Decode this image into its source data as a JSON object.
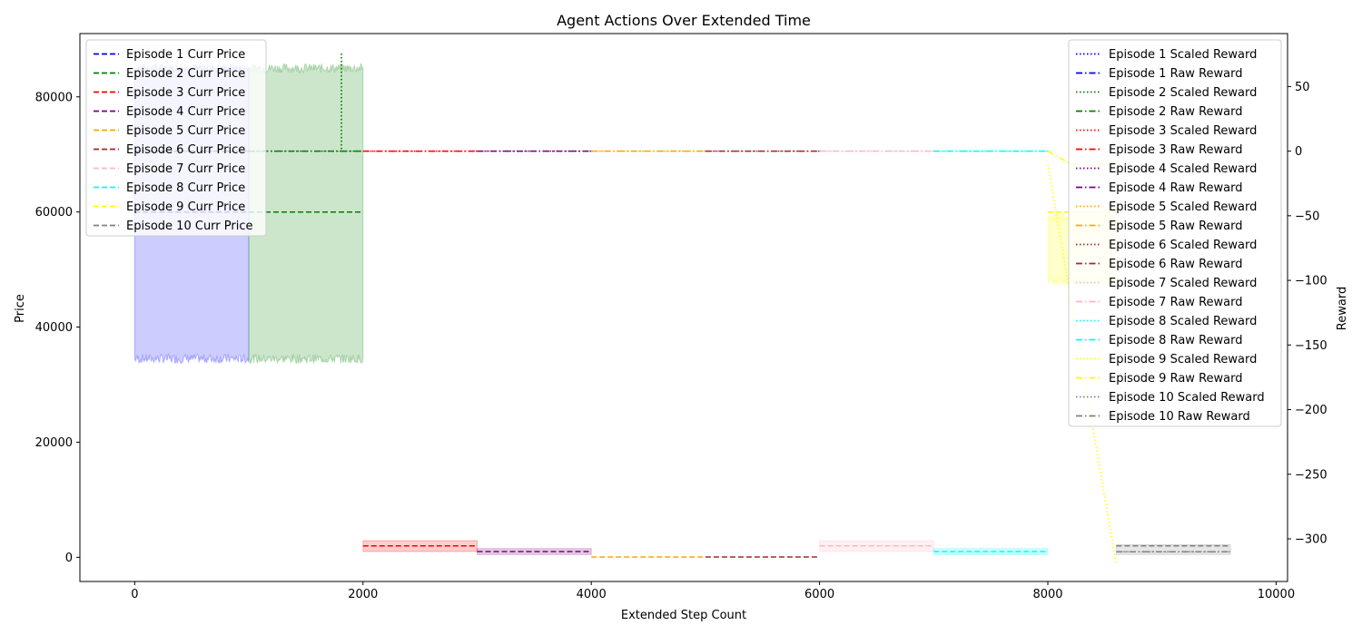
{
  "chart_data": {
    "type": "line",
    "title": "Agent Actions Over Extended Time",
    "xlabel": "Extended Step Count",
    "ylabel_left": "Price",
    "ylabel_right": "Reward",
    "xlim": [
      -480,
      10100
    ],
    "ylim_left": [
      -4200,
      91000
    ],
    "ylim_right": [
      -333,
      91
    ],
    "x_ticks": [
      0,
      2000,
      4000,
      6000,
      8000,
      10000
    ],
    "x_tick_labels": [
      "0",
      "2000",
      "4000",
      "6000",
      "8000",
      "10000"
    ],
    "y_left_ticks": [
      0,
      20000,
      40000,
      60000,
      80000
    ],
    "y_left_tick_labels": [
      "0",
      "20000",
      "40000",
      "60000",
      "80000"
    ],
    "y_right_ticks": [
      50,
      0,
      -50,
      -100,
      -150,
      -200,
      -250,
      -300
    ],
    "y_right_tick_labels": [
      "50",
      "0",
      "−50",
      "−100",
      "−150",
      "−200",
      "−250",
      "−300"
    ],
    "grid": false,
    "legend_left_position": "upper-left",
    "legend_right_position": "upper-right",
    "series": [
      {
        "name": "Episode 1 Curr Price",
        "axis": "left",
        "style": "dashed",
        "color": "#0000ff",
        "x": [
          0,
          1000
        ],
        "y": [
          60000,
          60000
        ]
      },
      {
        "name": "Episode 2 Curr Price",
        "axis": "left",
        "style": "dashed",
        "color": "#008000",
        "x": [
          1000,
          2000
        ],
        "y": [
          60000,
          60000
        ]
      },
      {
        "name": "Episode 3 Curr Price",
        "axis": "left",
        "style": "dashed",
        "color": "#ff0000",
        "x": [
          2000,
          3000
        ],
        "y": [
          2000,
          2000
        ]
      },
      {
        "name": "Episode 4 Curr Price",
        "axis": "left",
        "style": "dashed",
        "color": "#800080",
        "x": [
          3000,
          4000
        ],
        "y": [
          1000,
          1000
        ]
      },
      {
        "name": "Episode 5 Curr Price",
        "axis": "left",
        "style": "dashed",
        "color": "#ffa500",
        "x": [
          4000,
          5000
        ],
        "y": [
          50,
          50
        ]
      },
      {
        "name": "Episode 6 Curr Price",
        "axis": "left",
        "style": "dashed",
        "color": "#a52a2a",
        "x": [
          5000,
          6000
        ],
        "y": [
          50,
          50
        ]
      },
      {
        "name": "Episode 7 Curr Price",
        "axis": "left",
        "style": "dashed",
        "color": "#ffb6c1",
        "x": [
          6000,
          7000
        ],
        "y": [
          2000,
          2000
        ]
      },
      {
        "name": "Episode 8 Curr Price",
        "axis": "left",
        "style": "dashed",
        "color": "#00ffff",
        "x": [
          7000,
          8000
        ],
        "y": [
          1000,
          1000
        ]
      },
      {
        "name": "Episode 9 Curr Price",
        "axis": "left",
        "style": "dashed",
        "color": "#ffff00",
        "x": [
          8000,
          8600
        ],
        "y": [
          60000,
          60000
        ]
      },
      {
        "name": "Episode 10 Curr Price",
        "axis": "left",
        "style": "dashed",
        "color": "#808080",
        "x": [
          8600,
          9600
        ],
        "y": [
          2000,
          2000
        ]
      },
      {
        "name": "Episode 1 Scaled Reward",
        "axis": "right",
        "style": "dotted",
        "color": "#0000ff",
        "x": [
          0,
          1000
        ],
        "y": [
          0,
          0
        ]
      },
      {
        "name": "Episode 1 Raw Reward",
        "axis": "right",
        "style": "dashdot",
        "color": "#0000ff",
        "x": [
          0,
          1000
        ],
        "y": [
          0,
          0
        ]
      },
      {
        "name": "Episode 2 Scaled Reward",
        "axis": "right",
        "style": "dotted",
        "color": "#008000",
        "x": [
          1000,
          1810,
          1810,
          1812,
          1812,
          2000
        ],
        "y": [
          0,
          0,
          75,
          75,
          0,
          0
        ]
      },
      {
        "name": "Episode 2 Raw Reward",
        "axis": "right",
        "style": "dashdot",
        "color": "#008000",
        "x": [
          1000,
          2000
        ],
        "y": [
          0,
          0
        ]
      },
      {
        "name": "Episode 3 Scaled Reward",
        "axis": "right",
        "style": "dotted",
        "color": "#ff0000",
        "x": [
          2000,
          3000
        ],
        "y": [
          0,
          0
        ]
      },
      {
        "name": "Episode 3 Raw Reward",
        "axis": "right",
        "style": "dashdot",
        "color": "#ff0000",
        "x": [
          2000,
          3000
        ],
        "y": [
          0,
          0
        ]
      },
      {
        "name": "Episode 4 Scaled Reward",
        "axis": "right",
        "style": "dotted",
        "color": "#800080",
        "x": [
          3000,
          4000
        ],
        "y": [
          0,
          0
        ]
      },
      {
        "name": "Episode 4 Raw Reward",
        "axis": "right",
        "style": "dashdot",
        "color": "#800080",
        "x": [
          3000,
          4000
        ],
        "y": [
          0,
          0
        ]
      },
      {
        "name": "Episode 5 Scaled Reward",
        "axis": "right",
        "style": "dotted",
        "color": "#ffa500",
        "x": [
          4000,
          5000
        ],
        "y": [
          0,
          0
        ]
      },
      {
        "name": "Episode 5 Raw Reward",
        "axis": "right",
        "style": "dashdot",
        "color": "#ffa500",
        "x": [
          4000,
          5000
        ],
        "y": [
          0,
          0
        ]
      },
      {
        "name": "Episode 6 Scaled Reward",
        "axis": "right",
        "style": "dotted",
        "color": "#a52a2a",
        "x": [
          5000,
          6000
        ],
        "y": [
          0,
          0
        ]
      },
      {
        "name": "Episode 6 Raw Reward",
        "axis": "right",
        "style": "dashdot",
        "color": "#a52a2a",
        "x": [
          5000,
          6000
        ],
        "y": [
          0,
          0
        ]
      },
      {
        "name": "Episode 7 Scaled Reward",
        "axis": "right",
        "style": "dotted",
        "color": "#ffb6c1",
        "x": [
          6000,
          7000
        ],
        "y": [
          0,
          0
        ]
      },
      {
        "name": "Episode 7 Raw Reward",
        "axis": "right",
        "style": "dashdot",
        "color": "#ffb6c1",
        "x": [
          6000,
          7000
        ],
        "y": [
          0,
          0
        ]
      },
      {
        "name": "Episode 8 Scaled Reward",
        "axis": "right",
        "style": "dotted",
        "color": "#00ffff",
        "x": [
          7000,
          8000
        ],
        "y": [
          0,
          0
        ]
      },
      {
        "name": "Episode 8 Raw Reward",
        "axis": "right",
        "style": "dashdot",
        "color": "#00ffff",
        "x": [
          7000,
          8000
        ],
        "y": [
          0,
          0
        ]
      },
      {
        "name": "Episode 9 Scaled Reward",
        "axis": "right",
        "style": "dotted",
        "color": "#ffff00",
        "x": [
          8000,
          8600
        ],
        "y": [
          -10,
          -320
        ]
      },
      {
        "name": "Episode 9 Raw Reward",
        "axis": "right",
        "style": "dashdot",
        "color": "#ffff00",
        "x": [
          8000,
          8200,
          8600
        ],
        "y": [
          0,
          -10,
          -10
        ]
      },
      {
        "name": "Episode 10 Scaled Reward",
        "axis": "right",
        "style": "dotted",
        "color": "#808080",
        "x": [
          8600,
          9600
        ],
        "y": [
          -310,
          -310
        ]
      },
      {
        "name": "Episode 10 Raw Reward",
        "axis": "right",
        "style": "dashdot",
        "color": "#808080",
        "x": [
          8600,
          9600
        ],
        "y": [
          -310,
          -310
        ]
      }
    ],
    "bands": [
      {
        "axis": "left",
        "color": "#0000ff",
        "x": [
          0,
          1000
        ],
        "low": 34500,
        "high": 85000,
        "noisy": true
      },
      {
        "axis": "left",
        "color": "#008000",
        "x": [
          1000,
          2000
        ],
        "low": 34500,
        "high": 85000,
        "noisy": true
      },
      {
        "axis": "left",
        "color": "#ff0000",
        "x": [
          2000,
          3000
        ],
        "low": 1000,
        "high": 2900,
        "noisy": false
      },
      {
        "axis": "left",
        "color": "#800080",
        "x": [
          3000,
          4000
        ],
        "low": 500,
        "high": 1500,
        "noisy": false
      },
      {
        "axis": "left",
        "color": "#ffb6c1",
        "x": [
          6000,
          7000
        ],
        "low": 1000,
        "high": 2900,
        "noisy": false
      },
      {
        "axis": "left",
        "color": "#00ffff",
        "x": [
          7000,
          8000
        ],
        "low": 500,
        "high": 1500,
        "noisy": false
      },
      {
        "axis": "left",
        "color": "#ffff00",
        "x": [
          8000,
          8600
        ],
        "low": 48000,
        "high": 59000,
        "noisy": true
      },
      {
        "axis": "left",
        "color": "#808080",
        "x": [
          8600,
          9600
        ],
        "low": 500,
        "high": 2200,
        "noisy": false
      }
    ]
  }
}
